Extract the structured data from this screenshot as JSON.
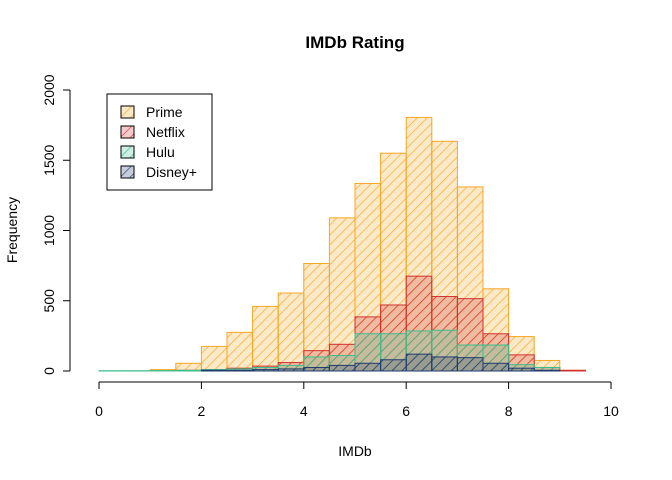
{
  "chart_data": {
    "type": "histogram",
    "title": "IMDb Rating",
    "xlabel": "IMDb",
    "ylabel": "Frequency",
    "xlim": [
      0,
      10
    ],
    "ylim": [
      0,
      2000
    ],
    "x_ticks": [
      "0",
      "2",
      "4",
      "6",
      "8",
      "10"
    ],
    "y_ticks": [
      "0",
      "500",
      "1000",
      "1500",
      "2000"
    ],
    "bin_width": 0.5,
    "bin_starts": [
      0,
      0.5,
      1,
      1.5,
      2,
      2.5,
      3,
      3.5,
      4,
      4.5,
      5,
      5.5,
      6,
      6.5,
      7,
      7.5,
      8,
      8.5,
      9
    ],
    "grid": false,
    "legend_position": "top-left",
    "series": [
      {
        "name": "Prime",
        "color": "#F5A623",
        "values": [
          0,
          0,
          10,
          55,
          175,
          275,
          460,
          555,
          765,
          1090,
          1335,
          1550,
          1805,
          1635,
          1310,
          585,
          245,
          75,
          5
        ]
      },
      {
        "name": "Netflix",
        "color": "#D0312D",
        "values": [
          0,
          0,
          0,
          5,
          10,
          20,
          35,
          60,
          145,
          190,
          385,
          470,
          675,
          530,
          515,
          265,
          115,
          25,
          5
        ]
      },
      {
        "name": "Hulu",
        "color": "#3DBE8C",
        "values": [
          2,
          2,
          3,
          5,
          10,
          15,
          25,
          40,
          100,
          110,
          265,
          265,
          285,
          290,
          185,
          185,
          45,
          25,
          0
        ]
      },
      {
        "name": "Disney+",
        "color": "#1E3A6E",
        "values": [
          0,
          0,
          0,
          0,
          5,
          5,
          10,
          15,
          25,
          40,
          55,
          80,
          120,
          100,
          95,
          55,
          20,
          5,
          0
        ]
      }
    ]
  }
}
